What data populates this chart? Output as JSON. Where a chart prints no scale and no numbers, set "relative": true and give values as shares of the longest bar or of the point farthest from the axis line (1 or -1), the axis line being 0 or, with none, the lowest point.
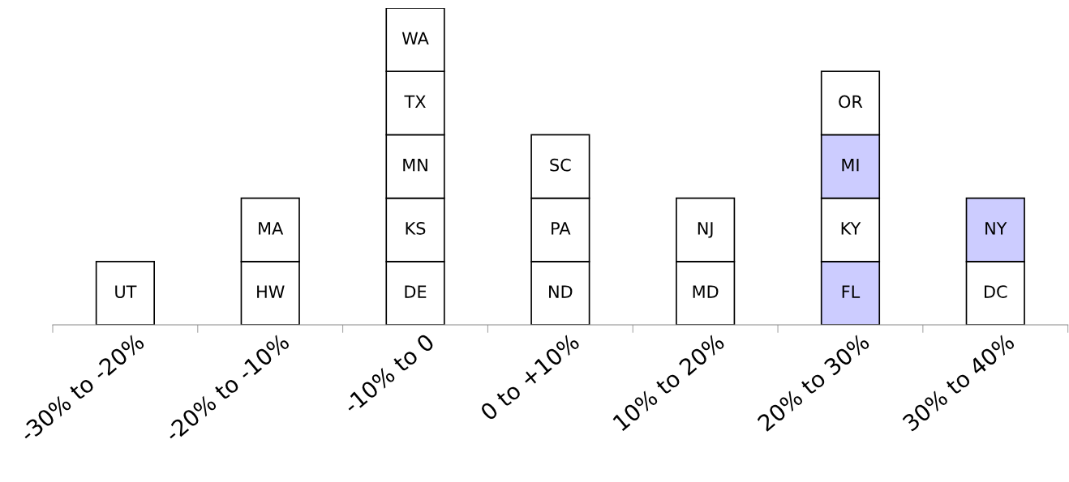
{
  "chart_data": {
    "type": "bar",
    "stacked": true,
    "relative": true,
    "grid": false,
    "legend": false,
    "categories": [
      "-30% to -20%",
      "-20% to -10%",
      "-10% to 0",
      "0 to +10%",
      "10% to 20%",
      "20% to 30%",
      "30% to 40%"
    ],
    "series": [
      {
        "values": [
          0.2,
          0.2,
          0.2,
          0.2,
          0.2,
          0.2,
          0.2
        ],
        "colors": [
          "#ffffff",
          "#ffffff",
          "#ffffff",
          "#ffffff",
          "#ffffff",
          "#ccccff",
          "#ffffff"
        ]
      },
      {
        "values": [
          null,
          0.2,
          0.2,
          0.2,
          0.2,
          0.2,
          0.2
        ],
        "colors": [
          "#ffffff",
          "#ffffff",
          "#ffffff",
          "#ffffff",
          "#ffffff",
          "#ffffff",
          "#ccccff"
        ]
      },
      {
        "values": [
          null,
          null,
          0.2,
          0.2,
          null,
          0.2,
          null
        ],
        "colors": [
          "#ffffff",
          "#ffffff",
          "#ffffff",
          "#ffffff",
          "#ffffff",
          "#ccccff",
          "#ffffff"
        ]
      },
      {
        "values": [
          null,
          null,
          0.2,
          null,
          null,
          0.2,
          null
        ],
        "colors": [
          "#ffffff",
          "#ffffff",
          "#ffffff",
          "#ffffff",
          "#ffffff",
          "#ffffff",
          "#ffffff"
        ]
      },
      {
        "values": [
          null,
          null,
          0.2,
          null,
          null,
          null,
          null
        ],
        "colors": [
          "#ffffff",
          "#ffffff",
          "#ffffff",
          "#ffffff",
          "#ffffff",
          "#ffffff",
          "#ffffff"
        ]
      }
    ],
    "annotations": [
      {
        "text": "UT",
        "x": "-30% to -20%",
        "y": 0.2
      },
      {
        "text": "HW",
        "x": "-20% to -10%",
        "y": 0.2
      },
      {
        "text": "MA",
        "x": "-20% to -10%",
        "y": 0.4
      },
      {
        "text": "DE",
        "x": "-10% to 0",
        "y": 0.2
      },
      {
        "text": "KS",
        "x": "-10% to 0",
        "y": 0.4
      },
      {
        "text": "MN",
        "x": "-10% to 0",
        "y": 0.6
      },
      {
        "text": "TX",
        "x": "-10% to 0",
        "y": 0.8
      },
      {
        "text": "WA",
        "x": "-10% to 0",
        "y": 1
      },
      {
        "text": "ND",
        "x": "0 to +10%",
        "y": 0.2
      },
      {
        "text": "PA",
        "x": "0 to +10%",
        "y": 0.4
      },
      {
        "text": "SC",
        "x": "0 to +10%",
        "y": 0.6
      },
      {
        "text": "MD",
        "x": "10% to 20%",
        "y": 0.2
      },
      {
        "text": "NJ",
        "x": "10% to 20%",
        "y": 0.4
      },
      {
        "text": "FL",
        "x": "20% to 30%",
        "y": 0.2
      },
      {
        "text": "KY",
        "x": "20% to 30%",
        "y": 0.4
      },
      {
        "text": "MI",
        "x": "20% to 30%",
        "y": 0.6
      },
      {
        "text": "OR",
        "x": "20% to 30%",
        "y": 0.8
      },
      {
        "text": "DC",
        "x": "30% to 40%",
        "y": 0.2
      },
      {
        "text": "NY",
        "x": "30% to 40%",
        "y": 0.4
      }
    ]
  }
}
